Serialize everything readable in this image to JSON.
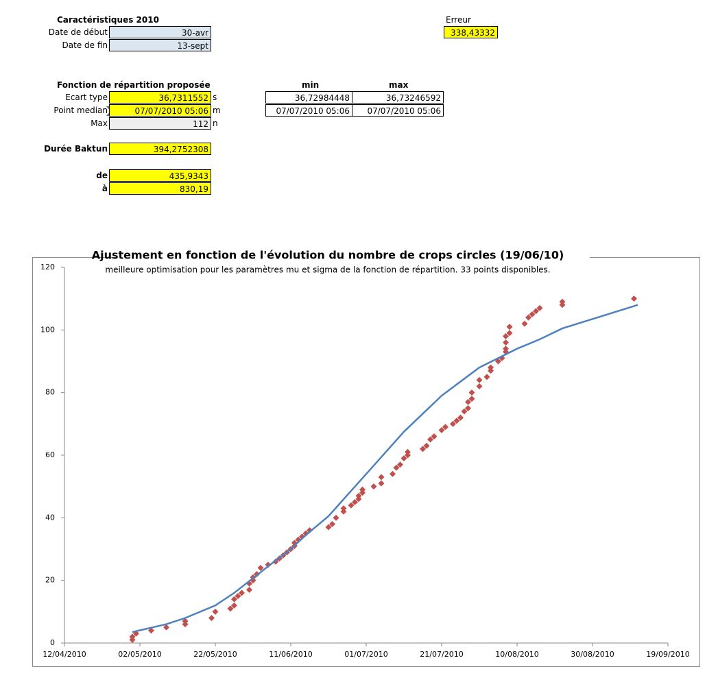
{
  "sheet": {
    "title": "Caractéristiques 2010",
    "rows": [
      {
        "label": "Date de début",
        "value": "30-avr"
      },
      {
        "label": "Date de fin",
        "value": "13-sept"
      }
    ],
    "error": {
      "label": "Erreur",
      "value": "338,43332"
    },
    "fit": {
      "title": "Fonction de répartition proposée",
      "min_header": "min",
      "max_header": "max",
      "rows": [
        {
          "label": "Ecart type",
          "value": "36,7311552",
          "unit": "s",
          "min": "36,72984448",
          "max": "36,73246592"
        },
        {
          "label": "Point median",
          "value": "07/07/2010 05:06",
          "unit": "m",
          "min": "07/07/2010 05:06",
          "max": "07/07/2010 05:06"
        },
        {
          "label": "Max",
          "value": "112",
          "unit": "n"
        }
      ]
    },
    "baktun": {
      "label": "Durée Baktun",
      "value": "394,2752308"
    },
    "range": [
      {
        "label": "de",
        "value": "435,9343"
      },
      {
        "label": "à",
        "value": "830,19"
      }
    ]
  },
  "chart_data": {
    "type": "scatter",
    "title": "Ajustement en fonction de l'évolution du nombre de crops circles (19/06/10)",
    "subtitle": "meilleure optimisation pour les paramètres mu et sigma de la fonction de répartition. 33 points disponibles.",
    "xlim": [
      "12/04/2010",
      "19/09/2010"
    ],
    "xticks": [
      "12/04/2010",
      "02/05/2010",
      "22/05/2010",
      "11/06/2010",
      "01/07/2010",
      "21/07/2010",
      "10/08/2010",
      "30/08/2010",
      "19/09/2010"
    ],
    "ylim": [
      0,
      120
    ],
    "yticks": [
      0,
      20,
      40,
      60,
      80,
      100,
      120
    ],
    "grid": false,
    "series": [
      {
        "type": "scatter",
        "marker": "diamond",
        "color": "#c0504d",
        "x": [
          "30/04/2010",
          "30/04/2010",
          "01/05/2010",
          "05/05/2010",
          "09/05/2010",
          "14/05/2010",
          "14/05/2010",
          "21/05/2010",
          "22/05/2010",
          "26/05/2010",
          "27/05/2010",
          "27/05/2010",
          "28/05/2010",
          "29/05/2010",
          "31/05/2010",
          "31/05/2010",
          "01/06/2010",
          "01/06/2010",
          "02/06/2010",
          "03/06/2010",
          "05/06/2010",
          "07/06/2010",
          "08/06/2010",
          "09/06/2010",
          "10/06/2010",
          "11/06/2010",
          "12/06/2010",
          "12/06/2010",
          "13/06/2010",
          "14/06/2010",
          "15/06/2010",
          "16/06/2010",
          "21/06/2010",
          "22/06/2010",
          "23/06/2010",
          "25/06/2010",
          "25/06/2010",
          "27/06/2010",
          "28/06/2010",
          "29/06/2010",
          "29/06/2010",
          "30/06/2010",
          "30/06/2010",
          "03/07/2010",
          "05/07/2010",
          "05/07/2010",
          "08/07/2010",
          "09/07/2010",
          "10/07/2010",
          "11/07/2010",
          "12/07/2010",
          "12/07/2010",
          "16/07/2010",
          "17/07/2010",
          "18/07/2010",
          "19/07/2010",
          "21/07/2010",
          "22/07/2010",
          "24/07/2010",
          "25/07/2010",
          "26/07/2010",
          "27/07/2010",
          "28/07/2010",
          "28/07/2010",
          "29/07/2010",
          "29/07/2010",
          "31/07/2010",
          "31/07/2010",
          "02/08/2010",
          "03/08/2010",
          "03/08/2010",
          "05/08/2010",
          "06/08/2010",
          "07/08/2010",
          "07/08/2010",
          "07/08/2010",
          "07/08/2010",
          "08/08/2010",
          "08/08/2010",
          "12/08/2010",
          "13/08/2010",
          "14/08/2010",
          "15/08/2010",
          "16/08/2010",
          "22/08/2010",
          "22/08/2010",
          "10/09/2010"
        ],
        "values": [
          1,
          2,
          3,
          4,
          5,
          6,
          7,
          8,
          10,
          11,
          12,
          14,
          15,
          16,
          17,
          19,
          20,
          21,
          22,
          24,
          25,
          26,
          27,
          28,
          29,
          30,
          31,
          32,
          33,
          34,
          35,
          36,
          37,
          38,
          40,
          42,
          43,
          44,
          45,
          46,
          47,
          48,
          49,
          50,
          51,
          53,
          54,
          56,
          57,
          59,
          60,
          61,
          62,
          63,
          65,
          66,
          68,
          69,
          70,
          71,
          72,
          74,
          75,
          77,
          78,
          80,
          82,
          84,
          85,
          87,
          88,
          90,
          91,
          93,
          94,
          96,
          98,
          99,
          101,
          102,
          104,
          105,
          106,
          107,
          108,
          109,
          110
        ]
      },
      {
        "type": "line",
        "color": "#4f81bd",
        "x": [
          "30/04/2010",
          "09/05/2010",
          "14/05/2010",
          "22/05/2010",
          "27/05/2010",
          "05/06/2010",
          "11/06/2010",
          "15/06/2010",
          "21/06/2010",
          "01/07/2010",
          "11/07/2010",
          "21/07/2010",
          "31/07/2010",
          "10/08/2010",
          "16/08/2010",
          "22/08/2010",
          "11/09/2010"
        ],
        "values": [
          3.5,
          6,
          8,
          12,
          16,
          24.5,
          30,
          34.5,
          40.5,
          54,
          67.5,
          79,
          88,
          94,
          97,
          100.5,
          108
        ]
      }
    ]
  }
}
